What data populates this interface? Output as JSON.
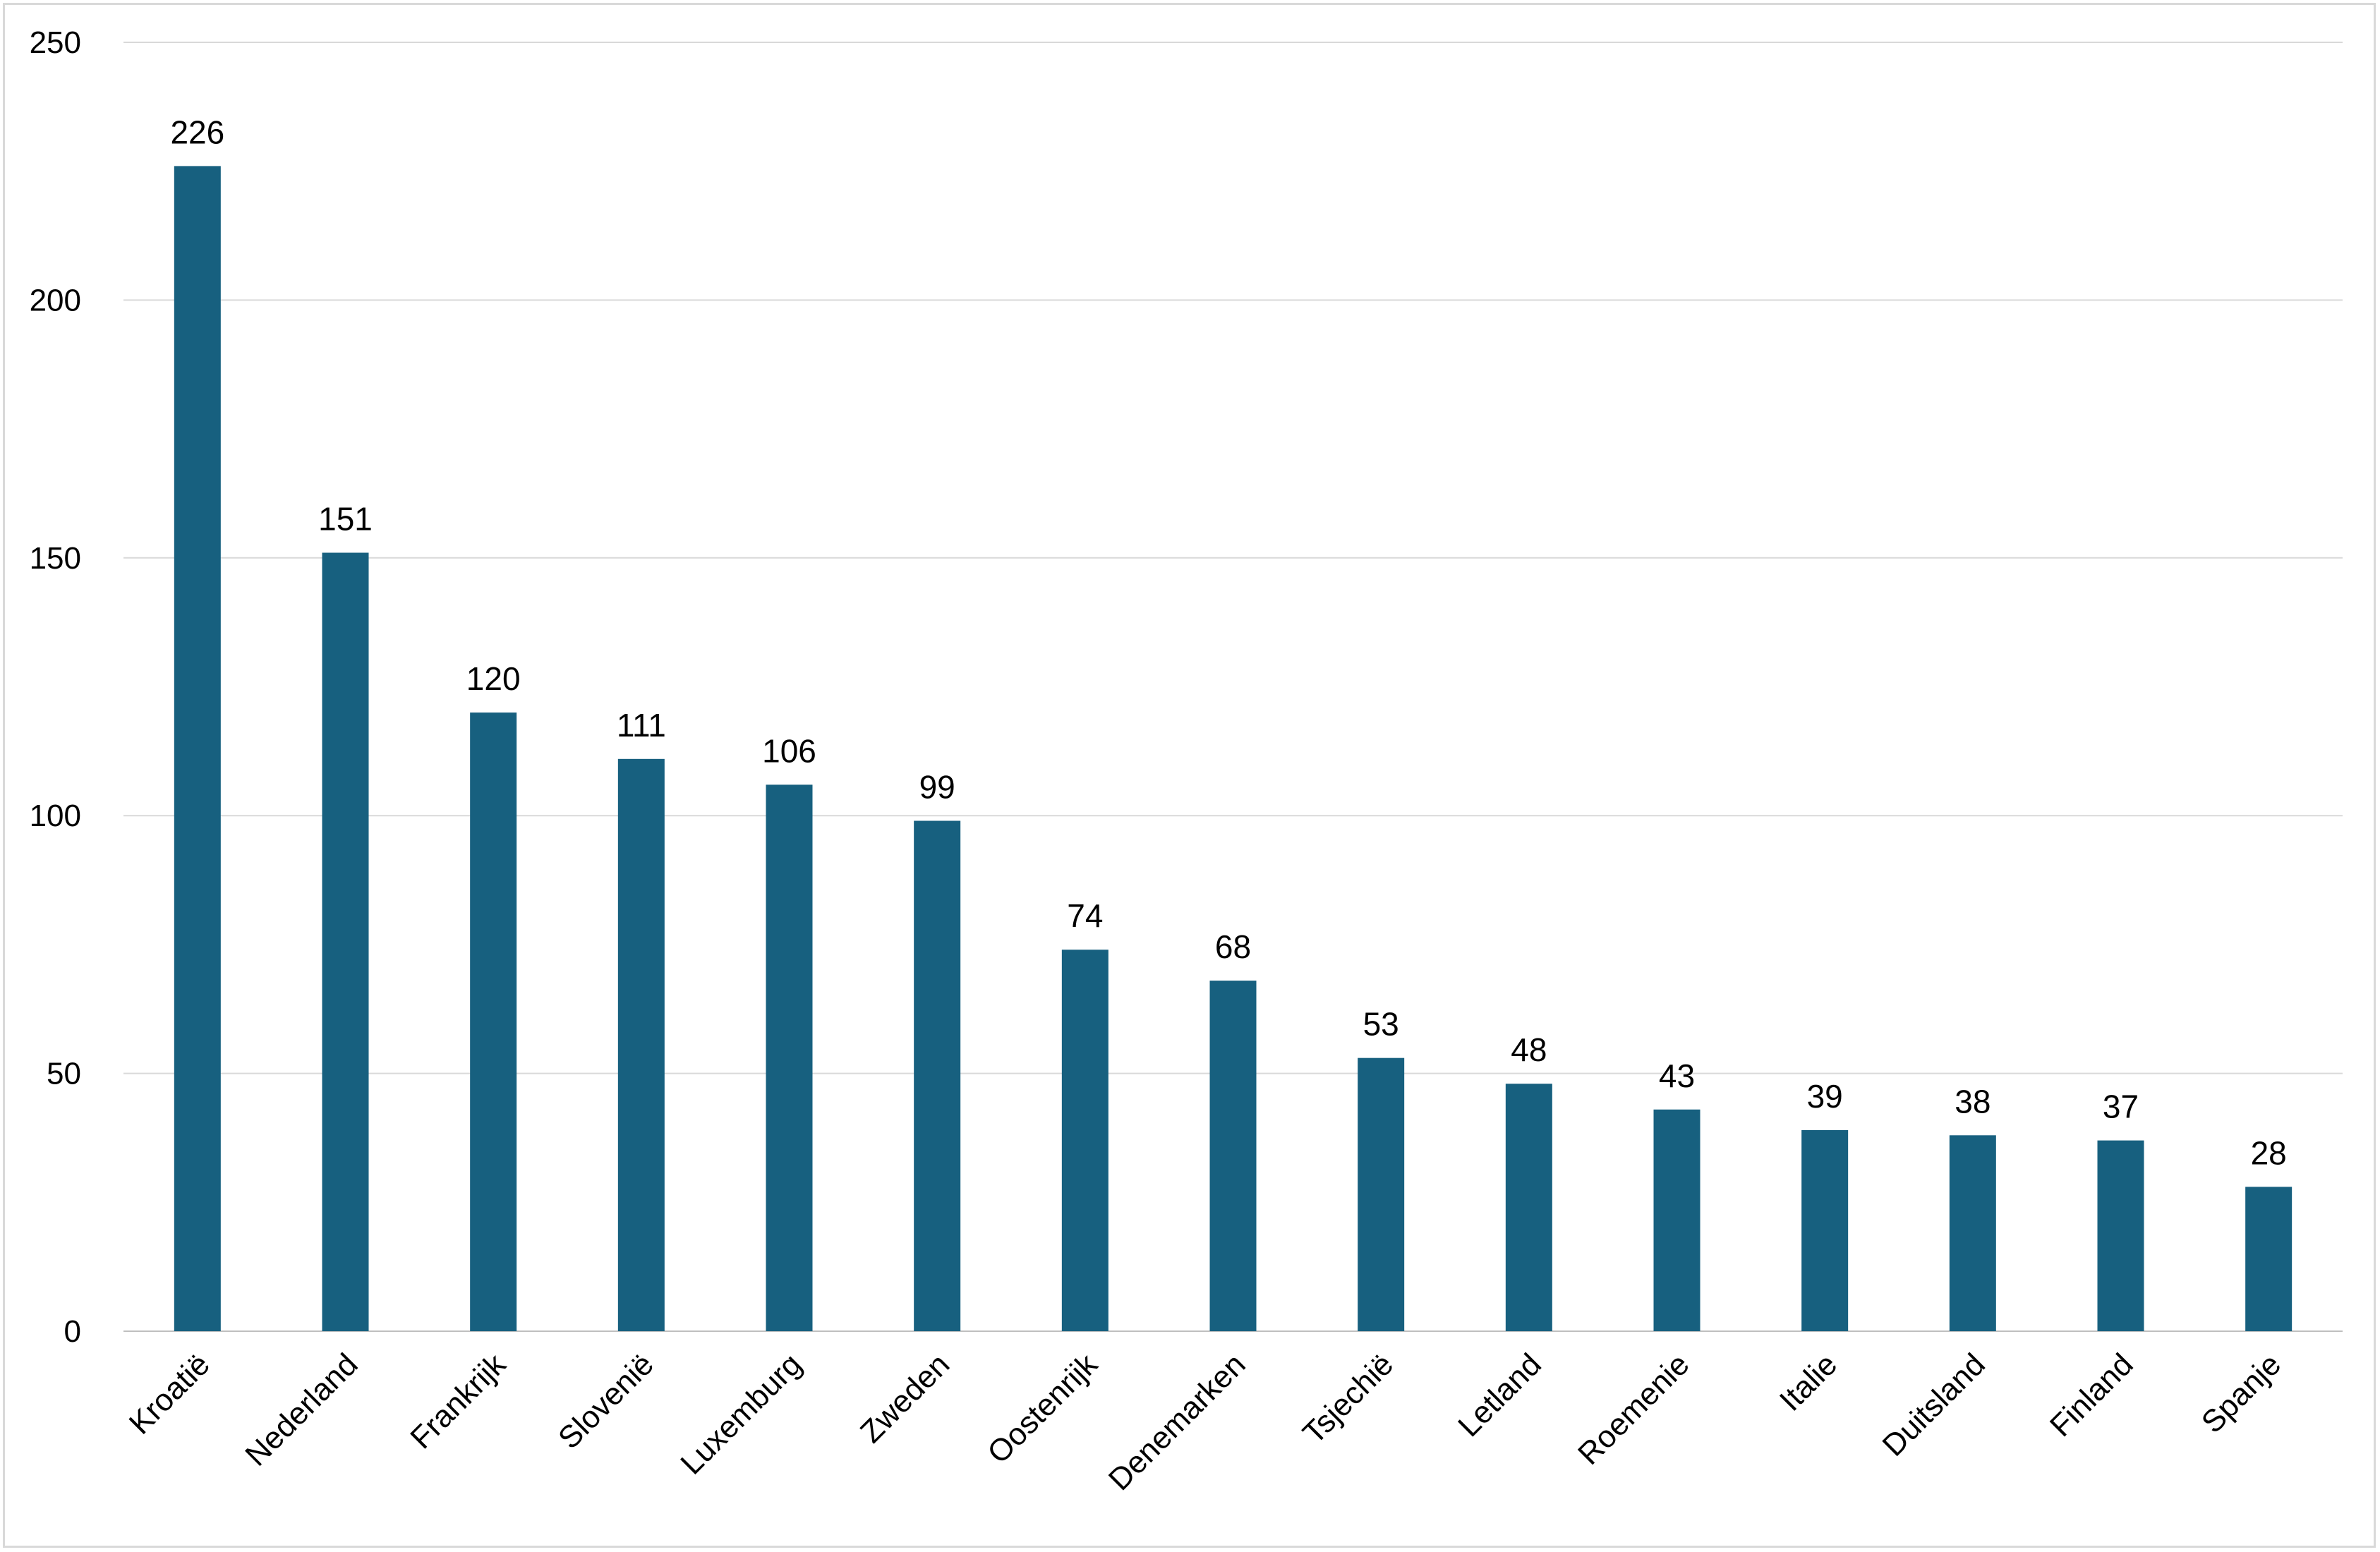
{
  "chart_data": {
    "type": "bar",
    "title": "",
    "xlabel": "",
    "ylabel": "",
    "ylim": [
      0,
      250
    ],
    "yticks": [
      0,
      50,
      100,
      150,
      200,
      250
    ],
    "grid": true,
    "legend": "none",
    "bar_color": "#17607f",
    "categories": [
      "Kroatië",
      "Nederland",
      "Frankrijk",
      "Slovenië",
      "Luxemburg",
      "Zweden",
      "Oostenrijk",
      "Denemarken",
      "Tsjechië",
      "Letland",
      "Roemenie",
      "Italie",
      "Duitsland",
      "Finland",
      "Spanje"
    ],
    "values": [
      226,
      151,
      120,
      111,
      106,
      99,
      74,
      68,
      53,
      48,
      43,
      39,
      38,
      37,
      28
    ]
  }
}
